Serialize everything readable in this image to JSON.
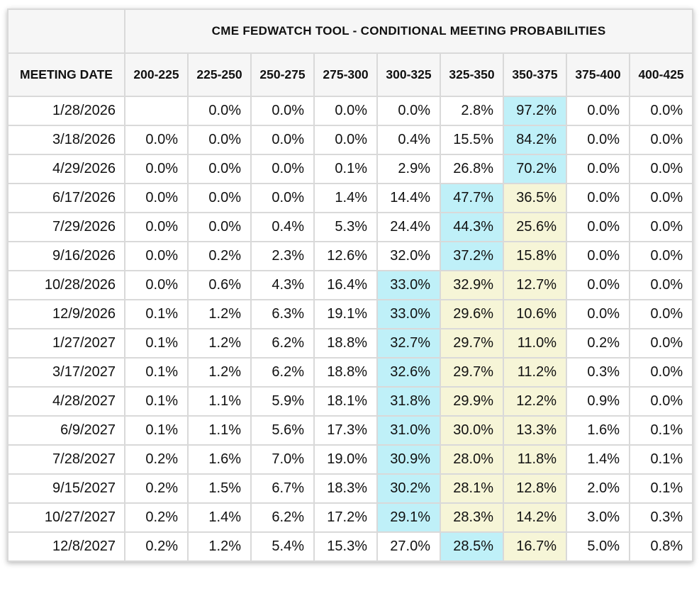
{
  "table": {
    "title": "CME FEDWATCH TOOL - CONDITIONAL MEETING PROBABILITIES",
    "date_header": "MEETING DATE",
    "colors": {
      "cyan_highlight": "#bff0f8",
      "yellow_highlight": "#f6f5d7",
      "header_bg": "#f6f6f6",
      "border": "#d9d9d9",
      "text": "#111111"
    }
  },
  "chart_data": {
    "type": "table",
    "title": "CME FEDWATCH TOOL - CONDITIONAL MEETING PROBABILITIES",
    "row_label": "MEETING DATE",
    "columns": [
      "200-225",
      "225-250",
      "250-275",
      "275-300",
      "300-325",
      "325-350",
      "350-375",
      "375-400",
      "400-425"
    ],
    "units": "percent",
    "rows": [
      {
        "date": "1/28/2026",
        "values": [
          null,
          0.0,
          0.0,
          0.0,
          0.0,
          2.8,
          97.2,
          0.0,
          0.0
        ],
        "hl": [
          "",
          "",
          "",
          "",
          "",
          "",
          "c",
          "",
          ""
        ]
      },
      {
        "date": "3/18/2026",
        "values": [
          0.0,
          0.0,
          0.0,
          0.0,
          0.4,
          15.5,
          84.2,
          0.0,
          0.0
        ],
        "hl": [
          "",
          "",
          "",
          "",
          "",
          "",
          "c",
          "",
          ""
        ]
      },
      {
        "date": "4/29/2026",
        "values": [
          0.0,
          0.0,
          0.0,
          0.1,
          2.9,
          26.8,
          70.2,
          0.0,
          0.0
        ],
        "hl": [
          "",
          "",
          "",
          "",
          "",
          "",
          "c",
          "",
          ""
        ]
      },
      {
        "date": "6/17/2026",
        "values": [
          0.0,
          0.0,
          0.0,
          1.4,
          14.4,
          47.7,
          36.5,
          0.0,
          0.0
        ],
        "hl": [
          "",
          "",
          "",
          "",
          "",
          "c",
          "y",
          "",
          ""
        ]
      },
      {
        "date": "7/29/2026",
        "values": [
          0.0,
          0.0,
          0.4,
          5.3,
          24.4,
          44.3,
          25.6,
          0.0,
          0.0
        ],
        "hl": [
          "",
          "",
          "",
          "",
          "",
          "c",
          "y",
          "",
          ""
        ]
      },
      {
        "date": "9/16/2026",
        "values": [
          0.0,
          0.2,
          2.3,
          12.6,
          32.0,
          37.2,
          15.8,
          0.0,
          0.0
        ],
        "hl": [
          "",
          "",
          "",
          "",
          "",
          "c",
          "y",
          "",
          ""
        ]
      },
      {
        "date": "10/28/2026",
        "values": [
          0.0,
          0.6,
          4.3,
          16.4,
          33.0,
          32.9,
          12.7,
          0.0,
          0.0
        ],
        "hl": [
          "",
          "",
          "",
          "",
          "c",
          "y",
          "y",
          "",
          ""
        ]
      },
      {
        "date": "12/9/2026",
        "values": [
          0.1,
          1.2,
          6.3,
          19.1,
          33.0,
          29.6,
          10.6,
          0.0,
          0.0
        ],
        "hl": [
          "",
          "",
          "",
          "",
          "c",
          "y",
          "y",
          "",
          ""
        ]
      },
      {
        "date": "1/27/2027",
        "values": [
          0.1,
          1.2,
          6.2,
          18.8,
          32.7,
          29.7,
          11.0,
          0.2,
          0.0
        ],
        "hl": [
          "",
          "",
          "",
          "",
          "c",
          "y",
          "y",
          "",
          ""
        ]
      },
      {
        "date": "3/17/2027",
        "values": [
          0.1,
          1.2,
          6.2,
          18.8,
          32.6,
          29.7,
          11.2,
          0.3,
          0.0
        ],
        "hl": [
          "",
          "",
          "",
          "",
          "c",
          "y",
          "y",
          "",
          ""
        ]
      },
      {
        "date": "4/28/2027",
        "values": [
          0.1,
          1.1,
          5.9,
          18.1,
          31.8,
          29.9,
          12.2,
          0.9,
          0.0
        ],
        "hl": [
          "",
          "",
          "",
          "",
          "c",
          "y",
          "y",
          "",
          ""
        ]
      },
      {
        "date": "6/9/2027",
        "values": [
          0.1,
          1.1,
          5.6,
          17.3,
          31.0,
          30.0,
          13.3,
          1.6,
          0.1
        ],
        "hl": [
          "",
          "",
          "",
          "",
          "c",
          "y",
          "y",
          "",
          ""
        ]
      },
      {
        "date": "7/28/2027",
        "values": [
          0.2,
          1.6,
          7.0,
          19.0,
          30.9,
          28.0,
          11.8,
          1.4,
          0.1
        ],
        "hl": [
          "",
          "",
          "",
          "",
          "c",
          "y",
          "y",
          "",
          ""
        ]
      },
      {
        "date": "9/15/2027",
        "values": [
          0.2,
          1.5,
          6.7,
          18.3,
          30.2,
          28.1,
          12.8,
          2.0,
          0.1
        ],
        "hl": [
          "",
          "",
          "",
          "",
          "c",
          "y",
          "y",
          "",
          ""
        ]
      },
      {
        "date": "10/27/2027",
        "values": [
          0.2,
          1.4,
          6.2,
          17.2,
          29.1,
          28.3,
          14.2,
          3.0,
          0.3
        ],
        "hl": [
          "",
          "",
          "",
          "",
          "c",
          "y",
          "y",
          "",
          ""
        ]
      },
      {
        "date": "12/8/2027",
        "values": [
          0.2,
          1.2,
          5.4,
          15.3,
          27.0,
          28.5,
          16.7,
          5.0,
          0.8
        ],
        "hl": [
          "",
          "",
          "",
          "",
          "",
          "c",
          "y",
          "",
          ""
        ]
      }
    ]
  }
}
